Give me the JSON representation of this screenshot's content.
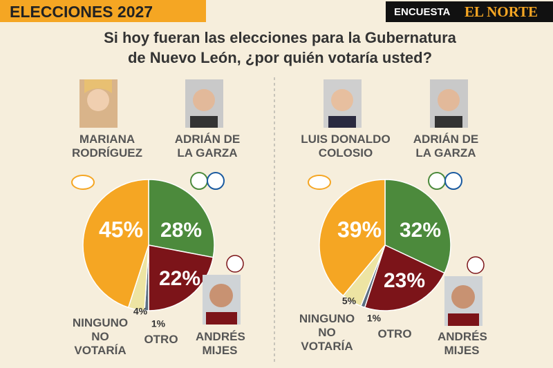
{
  "header": {
    "section": "ELECCIONES 2027",
    "survey": "ENCUESTA",
    "brand": "EL NORTE"
  },
  "question": "Si hoy fueran las elecciones para la Gubernatura de Nuevo León, ¿por quién votaría usted?",
  "chart_data": [
    {
      "type": "pie",
      "categories": [
        "ADRIÁN DE LA GARZA",
        "ANDRÉS MIJES",
        "OTRO",
        "NINGUNO NO VOTARÍA",
        "MARIANA RODRÍGUEZ"
      ],
      "values": [
        28,
        22,
        1,
        4,
        45
      ],
      "value_labels": [
        "28%",
        "22%",
        "1%",
        "4%",
        "45%"
      ],
      "colors": [
        "#4c8a3c",
        "#7c1419",
        "#5b6f82",
        "#ede4a3",
        "#f5a623"
      ]
    },
    {
      "type": "pie",
      "categories": [
        "ADRIÁN DE LA GARZA",
        "ANDRÉS MIJES",
        "OTRO",
        "NINGUNO NO VOTARÍA",
        "LUIS DONALDO COLOSIO"
      ],
      "values": [
        32,
        23,
        1,
        5,
        39
      ],
      "value_labels": [
        "32%",
        "23%",
        "1%",
        "5%",
        "39%"
      ],
      "colors": [
        "#4c8a3c",
        "#7c1419",
        "#5b6f82",
        "#ede4a3",
        "#f5a623"
      ]
    }
  ]
}
